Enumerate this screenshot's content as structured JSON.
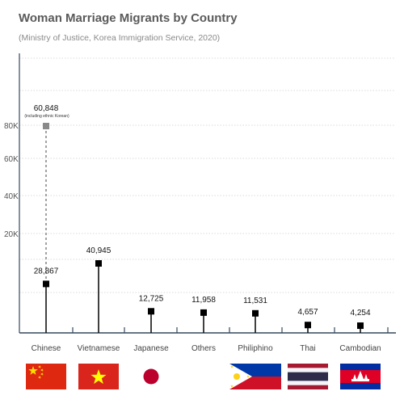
{
  "header": {
    "title": "Woman Marriage Migrants by Country",
    "subtitle": "(Ministry of Justice, Korea Immigration Service, 2020)"
  },
  "chart_data": {
    "type": "lollipop",
    "categories": [
      "Chinese",
      "Vietnamese",
      "Japanese",
      "Others",
      "Philiphino",
      "Thai",
      "Cambodian"
    ],
    "values": [
      28867,
      40945,
      12725,
      11958,
      11531,
      4657,
      4254
    ],
    "value_labels": [
      "28,867",
      "40,945",
      "12,725",
      "11,958",
      "11,531",
      "4,657",
      "4,254"
    ],
    "extra_point": {
      "category": "Chinese",
      "value": 60848,
      "label": "60,848",
      "note": "(including ethnic Korean)"
    },
    "y_ticks": [
      {
        "value": 20000,
        "label": "20K"
      },
      {
        "value": 40000,
        "label": "40K"
      },
      {
        "value": 60000,
        "label": "60K"
      },
      {
        "value": 80000,
        "label": "80K"
      }
    ],
    "grid": true,
    "legend": "none",
    "flags": [
      "china-flag",
      "vietnam-flag",
      "japan-flag",
      "",
      "philippines-flag",
      "thailand-flag",
      "cambodia-flag"
    ],
    "colors": {
      "stem": "#111111",
      "marker": "#000000",
      "extra_marker": "#8a8a8a",
      "axis": "#34495e",
      "grid": "#cfcfcf"
    }
  }
}
